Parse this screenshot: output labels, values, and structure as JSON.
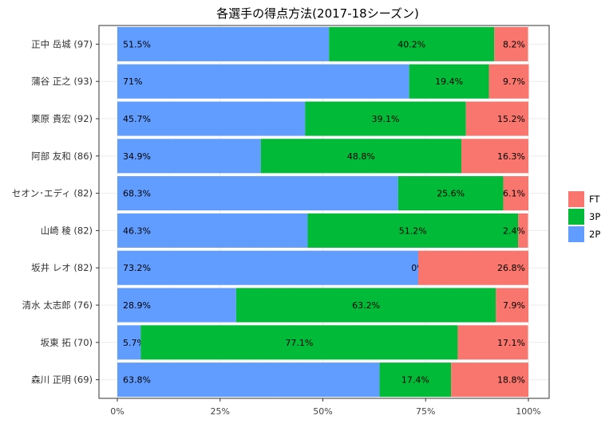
{
  "chart_data": {
    "type": "bar",
    "orientation": "horizontal",
    "stacked": true,
    "title": "各選手の得点方法(2017-18シーズン)",
    "xlabel": "",
    "ylabel": "",
    "xlim": [
      0,
      100
    ],
    "x_ticks": [
      "0%",
      "25%",
      "50%",
      "75%",
      "100%"
    ],
    "x_tick_values": [
      0,
      25,
      50,
      75,
      100
    ],
    "grid": true,
    "legend_position": "right",
    "categories": [
      "正中 岳城 (97)",
      "蒲谷 正之 (93)",
      "栗原 貴宏 (92)",
      "阿部 友和 (86)",
      "セオン･エディ (82)",
      "山崎 稜 (82)",
      "坂井 レオ (82)",
      "清水 太志郎 (76)",
      "坂東 拓 (70)",
      "森川 正明 (69)"
    ],
    "series": [
      {
        "name": "2P",
        "color": "#619CFF",
        "values": [
          51.5,
          71,
          45.7,
          34.9,
          68.3,
          46.3,
          73.2,
          28.9,
          5.7,
          63.8
        ],
        "labels": [
          "51.5%",
          "71%",
          "45.7%",
          "34.9%",
          "68.3%",
          "46.3%",
          "73.2%",
          "28.9%",
          "5.7%",
          "63.8%"
        ]
      },
      {
        "name": "3P",
        "color": "#00BA38",
        "values": [
          40.2,
          19.4,
          39.1,
          48.8,
          25.6,
          51.2,
          0,
          63.2,
          77.1,
          17.4
        ],
        "labels": [
          "40.2%",
          "19.4%",
          "39.1%",
          "48.8%",
          "25.6%",
          "51.2%",
          "0%",
          "63.2%",
          "77.1%",
          "17.4%"
        ]
      },
      {
        "name": "FT",
        "color": "#F8766D",
        "values": [
          8.2,
          9.7,
          15.2,
          16.3,
          6.1,
          2.4,
          26.8,
          7.9,
          17.1,
          18.8
        ],
        "labels": [
          "8.2%",
          "9.7%",
          "15.2%",
          "16.3%",
          "6.1%",
          "2.4%",
          "26.8%",
          "7.9%",
          "17.1%",
          "18.8%"
        ]
      }
    ],
    "legend": [
      "FT",
      "3P",
      "2P"
    ]
  }
}
